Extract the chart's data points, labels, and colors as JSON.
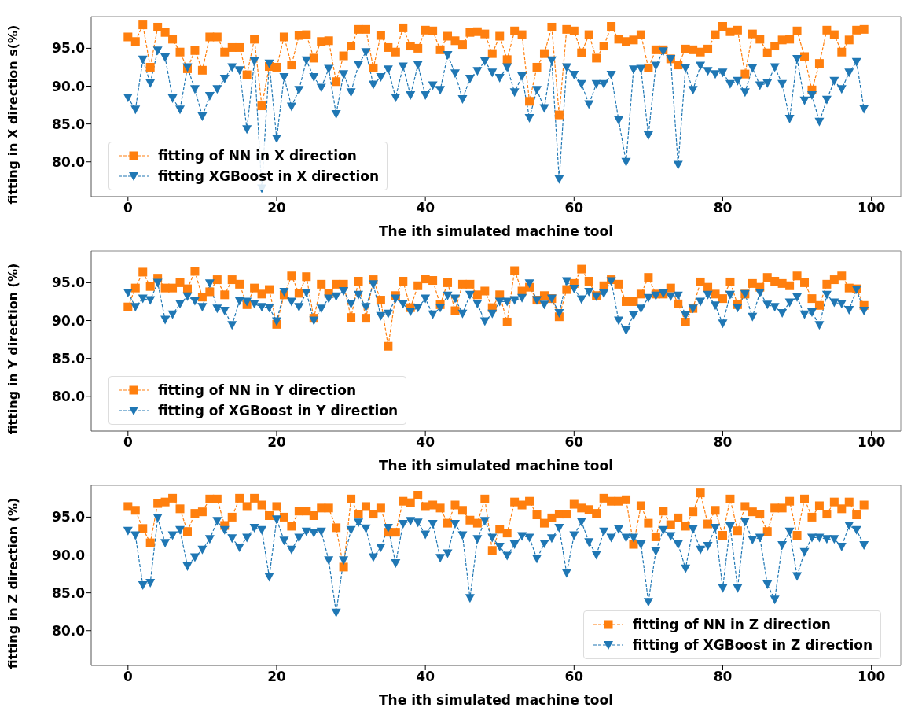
{
  "chart_data": [
    {
      "type": "line",
      "xlabel": "The ith simulated machine tool",
      "ylabel": "fitting in X direction s(%)",
      "x": [
        0,
        1,
        2,
        3,
        4,
        5,
        6,
        7,
        8,
        9,
        10,
        11,
        12,
        13,
        14,
        15,
        16,
        17,
        18,
        19,
        20,
        21,
        22,
        23,
        24,
        25,
        26,
        27,
        28,
        29,
        30,
        31,
        32,
        33,
        34,
        35,
        36,
        37,
        38,
        39,
        40,
        41,
        42,
        43,
        44,
        45,
        46,
        47,
        48,
        49,
        50,
        51,
        52,
        53,
        54,
        55,
        56,
        57,
        58,
        59,
        60,
        61,
        62,
        63,
        64,
        65,
        66,
        67,
        68,
        69,
        70,
        71,
        72,
        73,
        74,
        75,
        76,
        77,
        78,
        79,
        80,
        81,
        82,
        83,
        84,
        85,
        86,
        87,
        88,
        89,
        90,
        91,
        92,
        93,
        94,
        95,
        96,
        97,
        98,
        99
      ],
      "xlim": [
        -4.95,
        103.95
      ],
      "xticks": [
        0,
        20,
        40,
        60,
        80,
        100
      ],
      "ylim": [
        75.4,
        99.2
      ],
      "yticks": [
        {
          "value": 80,
          "label": "80.0"
        },
        {
          "value": 85,
          "label": "85.0"
        },
        {
          "value": 90,
          "label": "90.0"
        },
        {
          "value": 95,
          "label": "95.0"
        }
      ],
      "legend": "bottom left",
      "line_style": "dashed",
      "series": [
        {
          "name": "fitting of NN in X direction",
          "color": "#ff7f0e",
          "marker": "square",
          "values": [
            96.5,
            95.9,
            98.1,
            92.5,
            97.8,
            97.1,
            96.2,
            94.5,
            92.3,
            94.7,
            92.1,
            96.5,
            96.5,
            94.5,
            95.1,
            95.1,
            91.5,
            96.2,
            87.4,
            92.6,
            92.5,
            96.5,
            92.8,
            96.7,
            96.8,
            93.7,
            95.9,
            96.0,
            90.6,
            94.0,
            95.3,
            97.5,
            97.5,
            92.4,
            96.7,
            95.1,
            94.5,
            97.7,
            95.3,
            95.0,
            97.4,
            97.3,
            94.8,
            96.6,
            96.0,
            95.5,
            97.1,
            97.2,
            96.9,
            94.3,
            96.6,
            93.5,
            97.3,
            96.8,
            88.0,
            92.5,
            94.3,
            97.8,
            86.2,
            97.5,
            97.3,
            94.4,
            96.8,
            93.7,
            95.3,
            97.9,
            96.2,
            95.9,
            96.1,
            96.8,
            92.4,
            94.8,
            94.8,
            93.6,
            92.8,
            94.9,
            94.8,
            94.5,
            94.9,
            96.8,
            97.9,
            97.2,
            97.4,
            91.6,
            96.9,
            96.2,
            94.4,
            95.3,
            96.1,
            96.2,
            97.3,
            93.9,
            89.5,
            93.0,
            97.4,
            96.8,
            94.5,
            96.1,
            97.4,
            97.5
          ]
        },
        {
          "name": "fitting XGBoost in X direction",
          "color": "#1f77b4",
          "marker": "triangle",
          "values": [
            88.5,
            86.9,
            93.5,
            90.4,
            94.7,
            93.8,
            88.4,
            86.9,
            92.5,
            89.6,
            86.0,
            88.7,
            89.6,
            91.0,
            92.5,
            92.1,
            84.3,
            93.3,
            76.5,
            93.0,
            83.1,
            91.2,
            87.3,
            89.5,
            93.4,
            91.2,
            89.8,
            92.3,
            86.3,
            91.6,
            89.2,
            92.8,
            94.5,
            90.2,
            91.2,
            92.2,
            88.5,
            92.6,
            88.8,
            92.8,
            88.8,
            90.1,
            89.5,
            94.1,
            91.7,
            88.3,
            91.0,
            92.0,
            93.3,
            91.8,
            91.1,
            92.5,
            89.2,
            91.3,
            85.8,
            89.5,
            87.1,
            93.4,
            77.7,
            92.5,
            91.5,
            90.3,
            87.6,
            90.3,
            90.3,
            91.5,
            85.5,
            80.0,
            92.2,
            92.3,
            83.5,
            92.7,
            94.6,
            93.6,
            79.6,
            92.4,
            89.5,
            92.7,
            92.0,
            91.6,
            91.8,
            90.3,
            90.7,
            89.2,
            92.4,
            90.1,
            90.4,
            92.5,
            90.3,
            85.7,
            93.6,
            88.1,
            88.8,
            85.3,
            88.2,
            90.7,
            89.6,
            91.8,
            93.2,
            87.0
          ]
        }
      ]
    },
    {
      "type": "line",
      "xlabel": "The ith simulated machine tool",
      "ylabel": "fitting in Y direction (%)",
      "x": [
        0,
        1,
        2,
        3,
        4,
        5,
        6,
        7,
        8,
        9,
        10,
        11,
        12,
        13,
        14,
        15,
        16,
        17,
        18,
        19,
        20,
        21,
        22,
        23,
        24,
        25,
        26,
        27,
        28,
        29,
        30,
        31,
        32,
        33,
        34,
        35,
        36,
        37,
        38,
        39,
        40,
        41,
        42,
        43,
        44,
        45,
        46,
        47,
        48,
        49,
        50,
        51,
        52,
        53,
        54,
        55,
        56,
        57,
        58,
        59,
        60,
        61,
        62,
        63,
        64,
        65,
        66,
        67,
        68,
        69,
        70,
        71,
        72,
        73,
        74,
        75,
        76,
        77,
        78,
        79,
        80,
        81,
        82,
        83,
        84,
        85,
        86,
        87,
        88,
        89,
        90,
        91,
        92,
        93,
        94,
        95,
        96,
        97,
        98,
        99
      ],
      "xlim": [
        -4.95,
        103.95
      ],
      "xticks": [
        0,
        20,
        40,
        60,
        80,
        100
      ],
      "ylim": [
        75.4,
        99.2
      ],
      "yticks": [
        {
          "value": 80,
          "label": "80.0"
        },
        {
          "value": 85,
          "label": "85.0"
        },
        {
          "value": 90,
          "label": "90.0"
        },
        {
          "value": 95,
          "label": "95.0"
        }
      ],
      "legend": "bottom left",
      "line_style": "dashed",
      "series": [
        {
          "name": "fitting of NN in Y direction",
          "color": "#ff7f0e",
          "marker": "square",
          "values": [
            91.8,
            94.3,
            96.4,
            94.5,
            95.6,
            94.3,
            94.3,
            95.0,
            94.2,
            96.5,
            93.1,
            93.8,
            95.4,
            93.4,
            95.4,
            94.8,
            92.1,
            94.3,
            93.5,
            94.1,
            89.5,
            93.4,
            95.9,
            93.6,
            95.8,
            90.3,
            94.8,
            93.6,
            94.8,
            94.8,
            90.4,
            95.2,
            90.3,
            95.4,
            92.7,
            86.6,
            93.3,
            95.2,
            91.7,
            94.6,
            95.5,
            95.3,
            92.1,
            95.0,
            91.3,
            94.8,
            94.8,
            93.4,
            93.9,
            91.7,
            93.4,
            89.8,
            96.6,
            93.9,
            94.4,
            92.7,
            93.3,
            92.9,
            90.5,
            94.1,
            94.9,
            96.8,
            95.2,
            93.3,
            94.6,
            95.4,
            94.8,
            92.5,
            92.5,
            93.5,
            95.7,
            93.5,
            93.5,
            94.3,
            92.2,
            89.8,
            91.6,
            95.1,
            94.4,
            93.5,
            92.9,
            95.1,
            92.1,
            93.5,
            94.9,
            94.4,
            95.7,
            95.2,
            94.9,
            94.6,
            95.9,
            95.0,
            92.9,
            92.0,
            94.8,
            95.4,
            95.9,
            94.3,
            94.2,
            92.0
          ]
        },
        {
          "name": "fitting of XGBoost in Y direction",
          "color": "#1f77b4",
          "marker": "triangle",
          "values": [
            93.7,
            91.8,
            92.9,
            92.7,
            95.0,
            90.1,
            90.8,
            92.2,
            93.2,
            92.6,
            91.8,
            94.9,
            91.6,
            91.3,
            89.4,
            92.6,
            92.5,
            92.2,
            91.8,
            91.7,
            89.9,
            93.8,
            92.5,
            91.8,
            93.7,
            90.0,
            91.6,
            92.9,
            93.2,
            93.9,
            92.2,
            93.4,
            91.8,
            94.8,
            90.6,
            90.9,
            92.9,
            92.2,
            91.2,
            91.7,
            92.9,
            90.8,
            91.7,
            93.3,
            92.9,
            90.9,
            93.4,
            92.2,
            89.9,
            90.9,
            92.5,
            92.5,
            92.7,
            93.0,
            94.9,
            92.7,
            92.1,
            92.9,
            91.0,
            95.2,
            94.2,
            92.8,
            93.8,
            93.2,
            93.6,
            95.2,
            90.0,
            88.7,
            90.7,
            91.6,
            93.0,
            93.3,
            93.6,
            93.2,
            93.3,
            90.7,
            91.6,
            92.5,
            93.4,
            92.0,
            89.6,
            93.4,
            91.7,
            93.5,
            90.5,
            93.7,
            92.1,
            91.8,
            91.0,
            92.4,
            93.1,
            90.8,
            91.1,
            89.4,
            93.4,
            92.4,
            92.2,
            91.4,
            94.1,
            91.3
          ]
        }
      ]
    },
    {
      "type": "line",
      "xlabel": "The ith simulated machine tool",
      "ylabel": "fitting in Z direction (%)",
      "x": [
        0,
        1,
        2,
        3,
        4,
        5,
        6,
        7,
        8,
        9,
        10,
        11,
        12,
        13,
        14,
        15,
        16,
        17,
        18,
        19,
        20,
        21,
        22,
        23,
        24,
        25,
        26,
        27,
        28,
        29,
        30,
        31,
        32,
        33,
        34,
        35,
        36,
        37,
        38,
        39,
        40,
        41,
        42,
        43,
        44,
        45,
        46,
        47,
        48,
        49,
        50,
        51,
        52,
        53,
        54,
        55,
        56,
        57,
        58,
        59,
        60,
        61,
        62,
        63,
        64,
        65,
        66,
        67,
        68,
        69,
        70,
        71,
        72,
        73,
        74,
        75,
        76,
        77,
        78,
        79,
        80,
        81,
        82,
        83,
        84,
        85,
        86,
        87,
        88,
        89,
        90,
        91,
        92,
        93,
        94,
        95,
        96,
        97,
        98,
        99
      ],
      "xlim": [
        -4.95,
        103.95
      ],
      "xticks": [
        0,
        20,
        40,
        60,
        80,
        100
      ],
      "ylim": [
        75.4,
        99.2
      ],
      "yticks": [
        {
          "value": 80,
          "label": "80.0"
        },
        {
          "value": 85,
          "label": "85.0"
        },
        {
          "value": 90,
          "label": "90.0"
        },
        {
          "value": 95,
          "label": "95.0"
        }
      ],
      "legend": "bottom right",
      "line_style": "dashed",
      "series": [
        {
          "name": "fitting of NN in Z direction",
          "color": "#ff7f0e",
          "marker": "square",
          "values": [
            96.4,
            95.9,
            93.5,
            91.6,
            96.8,
            97.0,
            97.5,
            96.1,
            93.1,
            95.5,
            95.7,
            97.4,
            97.4,
            93.9,
            95.0,
            97.5,
            96.4,
            97.5,
            96.6,
            95.2,
            96.4,
            95.0,
            93.8,
            95.8,
            95.8,
            95.2,
            96.2,
            96.2,
            93.6,
            88.4,
            97.4,
            95.4,
            96.4,
            95.4,
            96.2,
            93.0,
            93.0,
            97.1,
            96.9,
            97.9,
            96.4,
            96.6,
            96.2,
            94.2,
            96.6,
            95.9,
            94.6,
            94.2,
            97.4,
            90.6,
            93.4,
            92.9,
            97.0,
            96.6,
            97.1,
            95.3,
            94.2,
            94.9,
            95.4,
            95.4,
            96.7,
            96.2,
            96.0,
            95.5,
            97.5,
            97.1,
            97.1,
            97.3,
            91.4,
            96.5,
            94.2,
            92.4,
            95.8,
            94.0,
            94.9,
            93.8,
            95.7,
            98.2,
            94.1,
            95.9,
            92.6,
            97.4,
            93.2,
            96.4,
            95.7,
            95.4,
            93.1,
            96.2,
            96.2,
            97.1,
            92.6,
            97.4,
            95.0,
            96.5,
            95.4,
            97.0,
            96.1,
            97.0,
            95.3,
            96.6
          ]
        },
        {
          "name": "fitting of XGBoost in Z direction",
          "color": "#1f77b4",
          "marker": "triangle",
          "values": [
            93.2,
            92.6,
            86.0,
            86.3,
            94.9,
            91.6,
            92.6,
            93.3,
            88.5,
            89.7,
            90.7,
            92.1,
            94.5,
            93.3,
            92.2,
            91.0,
            92.3,
            93.6,
            93.3,
            87.1,
            94.7,
            91.9,
            90.7,
            92.3,
            93.1,
            92.9,
            93.1,
            89.3,
            82.4,
            89.3,
            93.3,
            94.3,
            93.5,
            89.7,
            91.0,
            93.6,
            88.9,
            94.1,
            94.5,
            94.3,
            92.7,
            94.1,
            89.6,
            90.2,
            94.1,
            92.6,
            84.3,
            92.1,
            94.5,
            92.3,
            91.1,
            89.9,
            91.4,
            92.5,
            92.3,
            89.5,
            91.5,
            92.2,
            93.6,
            87.6,
            92.6,
            94.4,
            91.7,
            90.0,
            93.1,
            92.3,
            93.4,
            92.3,
            92.3,
            91.4,
            83.8,
            90.5,
            93.3,
            92.5,
            91.4,
            88.2,
            93.4,
            90.7,
            91.2,
            93.6,
            85.6,
            93.8,
            85.6,
            94.4,
            92.0,
            92.3,
            86.1,
            84.1,
            91.3,
            93.1,
            87.2,
            90.4,
            92.3,
            92.3,
            92.1,
            92.1,
            91.1,
            93.9,
            93.3,
            91.3
          ]
        }
      ]
    }
  ]
}
